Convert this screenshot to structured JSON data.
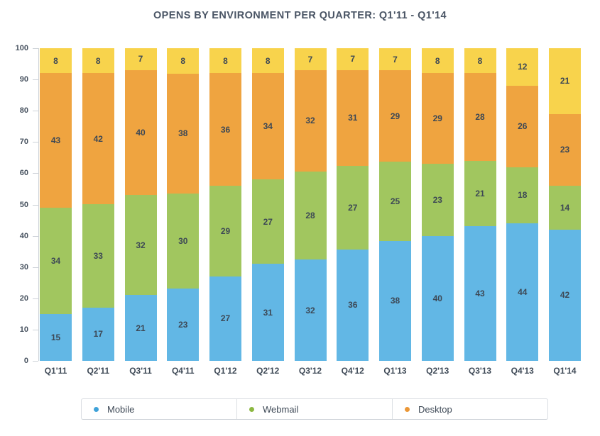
{
  "title": "OPENS BY ENVIRONMENT PER QUARTER: Q1'11 - Q1'14",
  "colors": {
    "mobile": "#62B7E5",
    "webmail": "#A1C65F",
    "desktop": "#EFA440",
    "unlabeled_top_segment": "#F8D34C",
    "legend_dot_mobile": "#3FA2D9",
    "legend_dot_webmail": "#8CB841",
    "legend_dot_desktop": "#EB9737",
    "axis": "#CDD2D8",
    "title_text": "#4A5565",
    "value_label_text": "#3D4855"
  },
  "chart_data": {
    "type": "bar",
    "stacked": true,
    "stacking": "percent",
    "title": "OPENS BY ENVIRONMENT PER QUARTER: Q1'11 - Q1'14",
    "categories": [
      "Q1'11",
      "Q2'11",
      "Q3'11",
      "Q4'11",
      "Q1'12",
      "Q2'12",
      "Q3'12",
      "Q4'12",
      "Q1'13",
      "Q2'13",
      "Q3'13",
      "Q4'13",
      "Q1'14"
    ],
    "series": [
      {
        "name": "Mobile",
        "color": "#62B7E5",
        "values": [
          15,
          17,
          21,
          23,
          27,
          31,
          32,
          36,
          38,
          40,
          43,
          44,
          42
        ]
      },
      {
        "name": "Webmail",
        "color": "#A1C65F",
        "values": [
          34,
          33,
          32,
          30,
          29,
          27,
          28,
          27,
          25,
          23,
          21,
          18,
          14
        ]
      },
      {
        "name": "Desktop",
        "color": "#EFA440",
        "values": [
          43,
          42,
          40,
          38,
          36,
          34,
          32,
          31,
          29,
          29,
          28,
          26,
          23
        ]
      },
      {
        "name": "",
        "color": "#F8D34C",
        "values": [
          8,
          8,
          7,
          8,
          8,
          8,
          7,
          7,
          7,
          8,
          8,
          12,
          21
        ]
      }
    ],
    "xlabel": "",
    "ylabel": "",
    "ylim": [
      0,
      100
    ],
    "y_ticks": [
      0,
      10,
      20,
      30,
      40,
      50,
      60,
      70,
      80,
      90,
      100
    ],
    "grid": false,
    "legend_position": "bottom",
    "data_labels": true
  },
  "legend": {
    "items": [
      {
        "label": "Mobile",
        "dot_color": "#3FA2D9"
      },
      {
        "label": "Webmail",
        "dot_color": "#8CB841"
      },
      {
        "label": "Desktop",
        "dot_color": "#EB9737"
      }
    ]
  }
}
